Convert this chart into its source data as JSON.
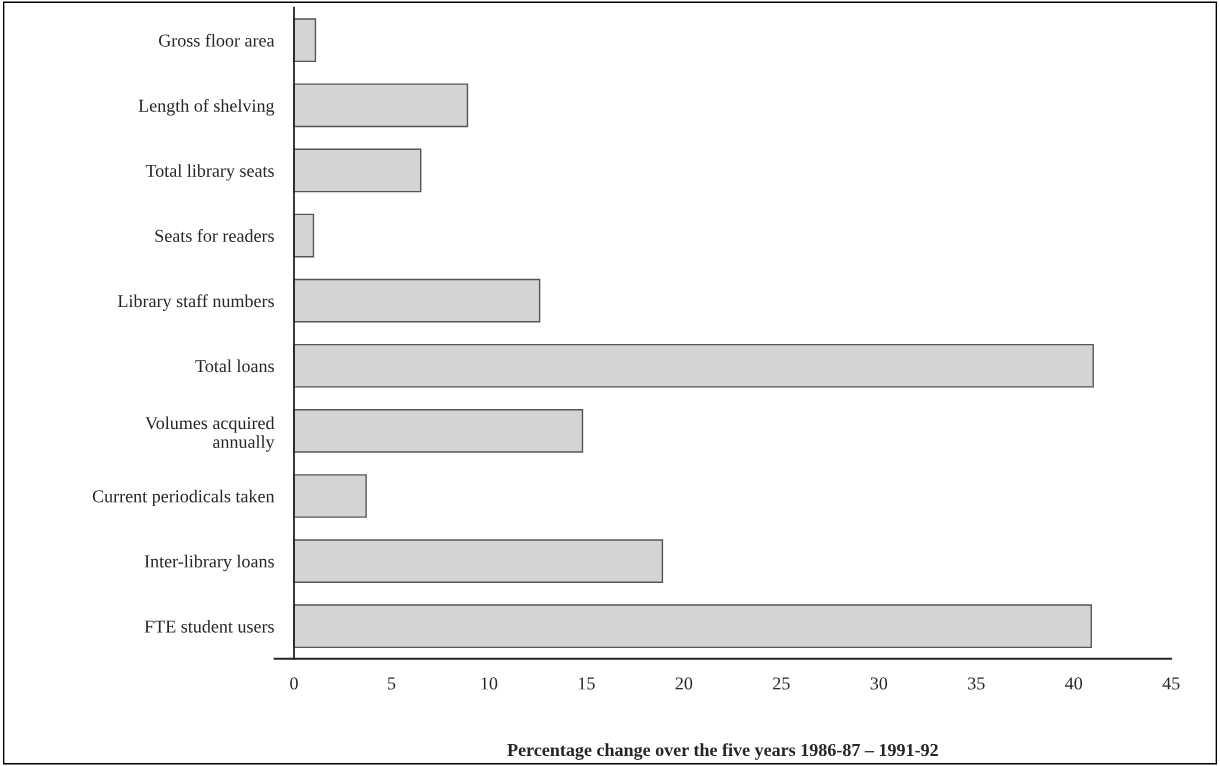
{
  "chart_data": {
    "type": "bar",
    "orientation": "horizontal",
    "categories": [
      "Gross floor area",
      "Length of shelving",
      "Total library seats",
      "Seats for readers",
      "Library staff numbers",
      "Total loans",
      "Volumes acquired\nannually",
      "Current periodicals taken",
      "Inter-library loans",
      "FTE student users"
    ],
    "values": [
      1.1,
      8.9,
      6.5,
      1.0,
      12.6,
      41.0,
      14.8,
      3.7,
      18.9,
      40.9
    ],
    "color": "#d4d4d4",
    "xlabel": "Percentage change over the five years 1986-87 – 1991-92",
    "xlim": [
      -1,
      45
    ],
    "xticks": [
      0,
      5,
      10,
      15,
      20,
      25,
      30,
      35,
      40,
      45
    ],
    "grid": false
  }
}
